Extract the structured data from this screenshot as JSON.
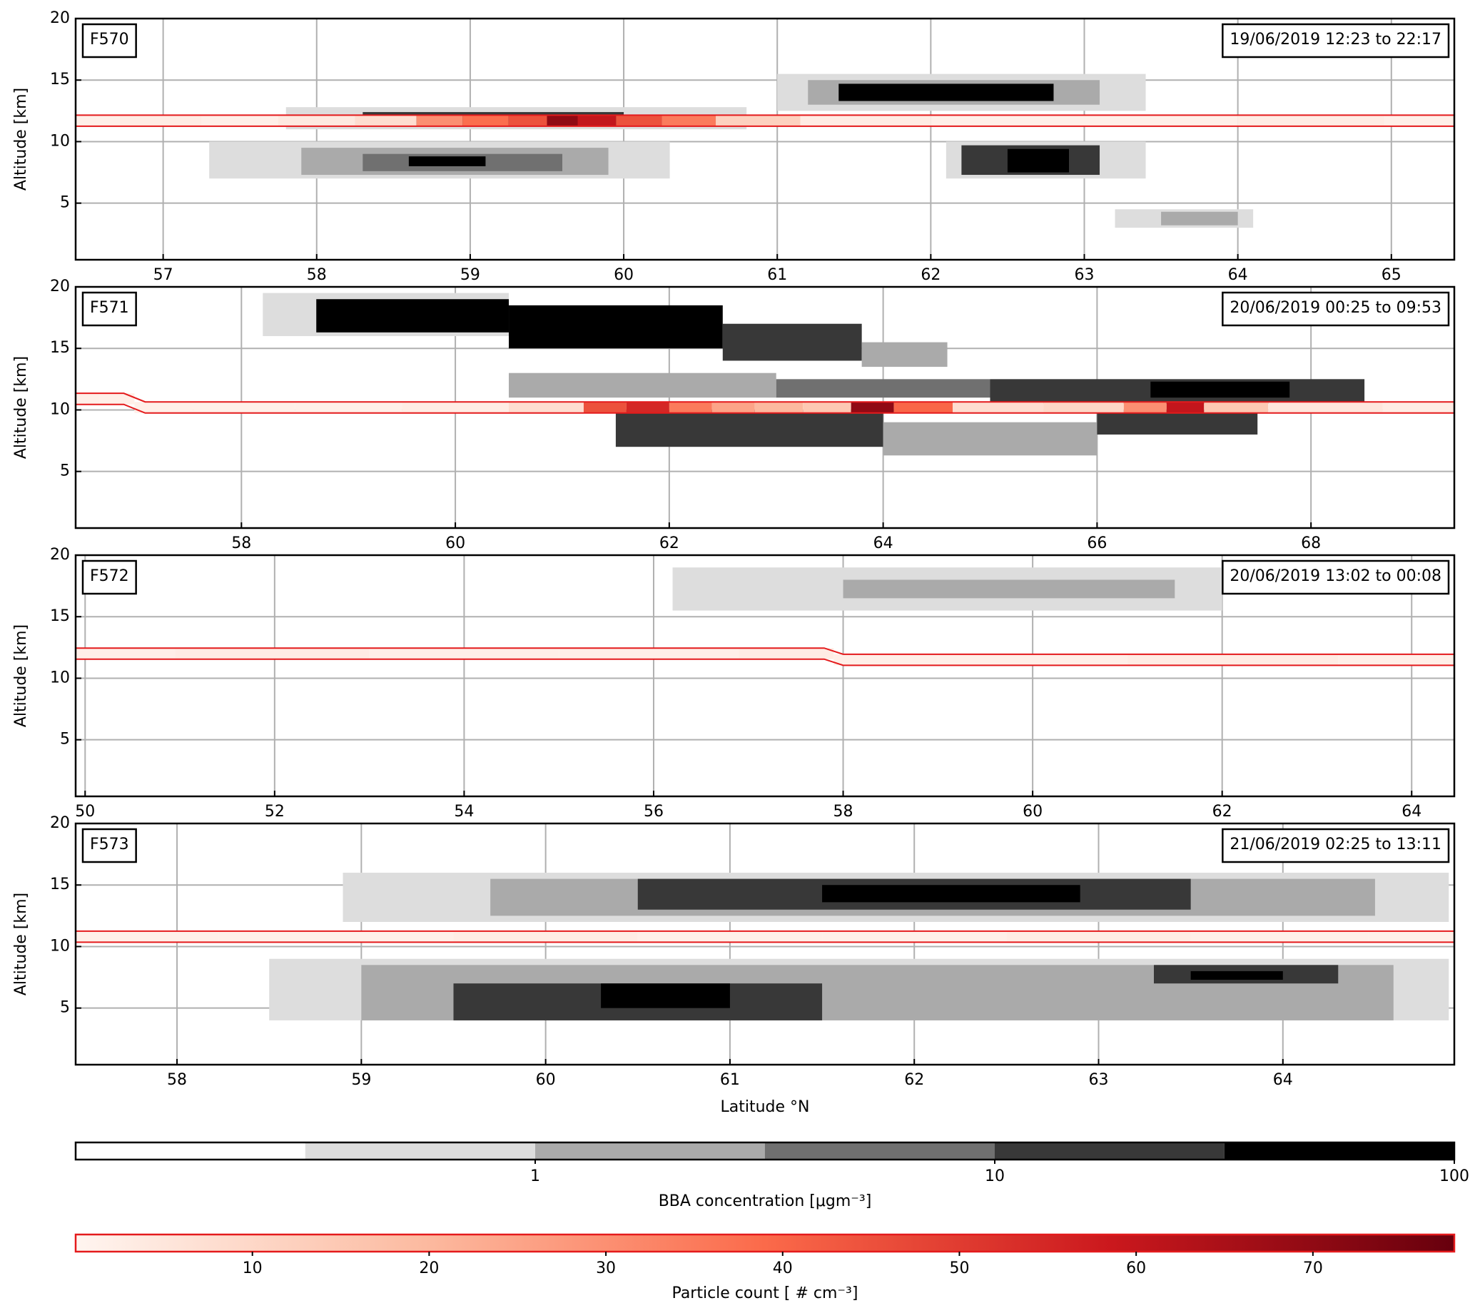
{
  "chart_data": [
    {
      "type": "heatmap",
      "label": "F570",
      "annotation": "19/06/2019 12:23 to 22:17",
      "ylabel": "Altitude [km]",
      "xlim": [
        56.43,
        65.41
      ],
      "xticks": [
        57,
        58,
        59,
        60,
        61,
        62,
        63,
        64,
        65
      ],
      "ylim": [
        0.4,
        20
      ],
      "yticks": [
        5,
        10,
        15,
        20
      ],
      "grid": true,
      "regions": [
        {
          "x": [
            57.3,
            60.3
          ],
          "y": [
            7,
            10
          ],
          "value": 0.5
        },
        {
          "x": [
            57.9,
            59.9
          ],
          "y": [
            7.3,
            9.5
          ],
          "value": 2
        },
        {
          "x": [
            58.3,
            59.6
          ],
          "y": [
            7.6,
            9
          ],
          "value": 5
        },
        {
          "x": [
            58.6,
            59.1
          ],
          "y": [
            8,
            8.8
          ],
          "value": 50
        },
        {
          "x": [
            57.8,
            60.8
          ],
          "y": [
            11,
            12.8
          ],
          "value": 0.5
        },
        {
          "x": [
            58.3,
            60
          ],
          "y": [
            11.3,
            12.4
          ],
          "value": 20
        },
        {
          "x": [
            61,
            63.4
          ],
          "y": [
            12.5,
            15.5
          ],
          "value": 0.5
        },
        {
          "x": [
            61.2,
            63.1
          ],
          "y": [
            13,
            15
          ],
          "value": 2
        },
        {
          "x": [
            61.4,
            62.8
          ],
          "y": [
            13.3,
            14.7
          ],
          "value": 50
        },
        {
          "x": [
            62.1,
            63.4
          ],
          "y": [
            7,
            10
          ],
          "value": 0.5
        },
        {
          "x": [
            62.2,
            63.1
          ],
          "y": [
            7.3,
            9.7
          ],
          "value": 20
        },
        {
          "x": [
            62.5,
            62.9
          ],
          "y": [
            7.5,
            9.4
          ],
          "value": 50
        },
        {
          "x": [
            63.2,
            64.1
          ],
          "y": [
            3,
            4.5
          ],
          "value": 0.5
        },
        {
          "x": [
            63.5,
            64
          ],
          "y": [
            3.2,
            4.3
          ],
          "value": 2
        }
      ],
      "track": {
        "x": [
          56.43,
          57,
          57.5,
          58,
          58.5,
          58.8,
          59.1,
          59.4,
          59.6,
          59.8,
          60.1,
          60.4,
          60.8,
          61.5,
          62.5,
          63.5,
          64.5,
          65.41
        ],
        "y": [
          11.7,
          11.7,
          11.7,
          11.7,
          11.7,
          11.7,
          11.7,
          11.7,
          11.7,
          11.7,
          11.7,
          11.7,
          11.7,
          11.7,
          11.7,
          11.7,
          11.7,
          11.7
        ],
        "values": [
          2,
          3,
          2,
          4,
          8,
          30,
          38,
          45,
          70,
          60,
          45,
          35,
          12,
          3,
          2,
          2,
          3,
          2
        ]
      }
    },
    {
      "type": "heatmap",
      "label": "F571",
      "annotation": "20/06/2019 00:25 to 09:53",
      "ylabel": "Altitude [km]",
      "xlim": [
        56.45,
        69.34
      ],
      "xticks": [
        58,
        60,
        62,
        64,
        66,
        68
      ],
      "ylim": [
        0.4,
        20
      ],
      "yticks": [
        5,
        10,
        15,
        20
      ],
      "grid": true,
      "regions": [
        {
          "x": [
            58.2,
            60.5
          ],
          "y": [
            16,
            19.5
          ],
          "value": 0.5
        },
        {
          "x": [
            58.7,
            60.5
          ],
          "y": [
            16.3,
            19
          ],
          "value": 50
        },
        {
          "x": [
            60.5,
            62.5
          ],
          "y": [
            15,
            18.5
          ],
          "value": 50
        },
        {
          "x": [
            62.5,
            63.8
          ],
          "y": [
            14,
            17
          ],
          "value": 20
        },
        {
          "x": [
            63.8,
            64.6
          ],
          "y": [
            13.5,
            15.5
          ],
          "value": 2
        },
        {
          "x": [
            60.5,
            63
          ],
          "y": [
            11,
            13
          ],
          "value": 2
        },
        {
          "x": [
            63,
            65
          ],
          "y": [
            11,
            12.5
          ],
          "value": 5
        },
        {
          "x": [
            65,
            68.5
          ],
          "y": [
            10.5,
            12.5
          ],
          "value": 20
        },
        {
          "x": [
            66.5,
            67.8
          ],
          "y": [
            11,
            12.3
          ],
          "value": 50
        },
        {
          "x": [
            61.5,
            64
          ],
          "y": [
            7,
            10
          ],
          "value": 20
        },
        {
          "x": [
            64,
            66
          ],
          "y": [
            6.3,
            9
          ],
          "value": 2
        },
        {
          "x": [
            66,
            67.5
          ],
          "y": [
            8,
            10
          ],
          "value": 20
        }
      ],
      "track": {
        "x": [
          56.45,
          56.9,
          57.1,
          58,
          59,
          60,
          61,
          61.4,
          61.8,
          62.2,
          62.6,
          63,
          63.5,
          63.9,
          64.3,
          65,
          66,
          66.5,
          66.8,
          67.2,
          68,
          69.34
        ],
        "y": [
          10.9,
          10.9,
          10.2,
          10.2,
          10.2,
          10.2,
          10.2,
          10.2,
          10.2,
          10.2,
          10.2,
          10.2,
          10.2,
          10.2,
          10.2,
          10.2,
          10.2,
          10.2,
          10.2,
          10.2,
          10.2,
          10.2
        ],
        "values": [
          2,
          2,
          2,
          2,
          2,
          3,
          8,
          45,
          55,
          35,
          25,
          20,
          15,
          70,
          40,
          8,
          10,
          30,
          60,
          15,
          5,
          3
        ]
      }
    },
    {
      "type": "heatmap",
      "label": "F572",
      "annotation": "20/06/2019 13:02 to 00:08",
      "ylabel": "Altitude [km]",
      "xlim": [
        49.9,
        64.45
      ],
      "xticks": [
        50,
        52,
        54,
        56,
        58,
        60,
        62,
        64
      ],
      "ylim": [
        0.4,
        20
      ],
      "yticks": [
        5,
        10,
        15,
        20
      ],
      "grid": true,
      "regions": [
        {
          "x": [
            56.2,
            62
          ],
          "y": [
            15.5,
            19
          ],
          "value": 0.5
        },
        {
          "x": [
            58,
            61.5
          ],
          "y": [
            16.5,
            18
          ],
          "value": 2
        }
      ],
      "track": {
        "x": [
          49.9,
          52,
          54,
          56,
          57.8,
          58,
          60,
          62,
          64.45
        ],
        "y": [
          12,
          12,
          12,
          12,
          12,
          11.5,
          11.5,
          11.5,
          11.5
        ],
        "values": [
          2,
          3,
          2,
          2,
          3,
          2,
          2,
          3,
          2
        ]
      }
    },
    {
      "type": "heatmap",
      "label": "F573",
      "annotation": "21/06/2019 02:25 to 13:11",
      "ylabel": "Altitude [km]",
      "xlabel": "Latitude °N",
      "xlim": [
        57.45,
        64.93
      ],
      "xticks": [
        58,
        59,
        60,
        61,
        62,
        63,
        64
      ],
      "ylim": [
        0.4,
        20
      ],
      "yticks": [
        5,
        10,
        15,
        20
      ],
      "grid": true,
      "regions": [
        {
          "x": [
            58.9,
            64.9
          ],
          "y": [
            12,
            16
          ],
          "value": 0.5
        },
        {
          "x": [
            59.7,
            64.5
          ],
          "y": [
            12.5,
            15.5
          ],
          "value": 2
        },
        {
          "x": [
            60.5,
            63.5
          ],
          "y": [
            13,
            15.5
          ],
          "value": 20
        },
        {
          "x": [
            61.5,
            62.9
          ],
          "y": [
            13.6,
            15
          ],
          "value": 50
        },
        {
          "x": [
            58.5,
            64.9
          ],
          "y": [
            4,
            9
          ],
          "value": 0.5
        },
        {
          "x": [
            59,
            64.6
          ],
          "y": [
            4,
            8.5
          ],
          "value": 2
        },
        {
          "x": [
            59.5,
            61.5
          ],
          "y": [
            4,
            7
          ],
          "value": 20
        },
        {
          "x": [
            60.3,
            61
          ],
          "y": [
            5,
            7
          ],
          "value": 50
        },
        {
          "x": [
            63.3,
            64.3
          ],
          "y": [
            7,
            8.5
          ],
          "value": 20
        },
        {
          "x": [
            63.5,
            64
          ],
          "y": [
            7.3,
            8
          ],
          "value": 50
        }
      ],
      "track": {
        "x": [
          57.45,
          59,
          60,
          61,
          62,
          63,
          64,
          64.93
        ],
        "y": [
          10.8,
          10.8,
          10.8,
          10.8,
          10.8,
          10.8,
          10.8,
          10.8
        ],
        "values": [
          2,
          2,
          3,
          2,
          2,
          3,
          2,
          2
        ]
      }
    },
    {
      "type": "colorbar",
      "xlabel": "BBA concentration [μgm⁻³]",
      "log": true,
      "xlim": [
        0.1,
        100
      ],
      "xticks": [
        1,
        10,
        100
      ],
      "bounds": [
        0.1,
        0.316,
        1,
        3.16,
        10,
        31.6,
        100
      ],
      "colors": [
        "#ffffff",
        "#dddddd",
        "#aaaaaa",
        "#707070",
        "#383838",
        "#000000"
      ]
    },
    {
      "type": "colorbar",
      "xlabel": "Particle count [ # cm⁻³]",
      "log": false,
      "xlim": [
        0,
        78
      ],
      "xticks": [
        10,
        20,
        30,
        40,
        50,
        60,
        70
      ],
      "colors": [
        "#fff5f0",
        "#fcbba1",
        "#fb6a4a",
        "#cb181d",
        "#67000d"
      ]
    }
  ]
}
